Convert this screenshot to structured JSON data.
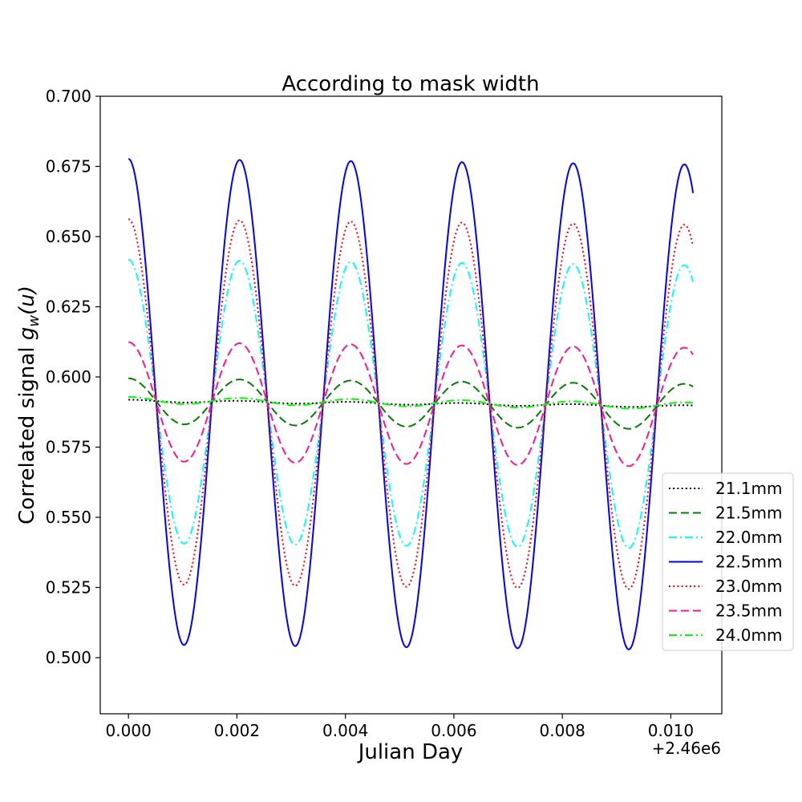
{
  "chart_data": {
    "type": "line",
    "title": "According to mask width",
    "xlabel": "Julian Day",
    "ylabel": "Correlated signal g_w(u)",
    "ylabel_parts": {
      "prefix": "Correlated signal ",
      "g": "g",
      "sub": "w",
      "arg": "(u)"
    },
    "x_offset_label": "+2.46e6",
    "xlim": [
      -0.00052,
      0.01094
    ],
    "ylim": [
      0.48,
      0.7
    ],
    "xticks": [
      0.0,
      0.002,
      0.004,
      0.006,
      0.008,
      0.01
    ],
    "xtick_labels": [
      "0.000",
      "0.002",
      "0.004",
      "0.006",
      "0.008",
      "0.010"
    ],
    "yticks": [
      0.5,
      0.525,
      0.55,
      0.575,
      0.6,
      0.625,
      0.65,
      0.675,
      0.7
    ],
    "ytick_labels": [
      "0.500",
      "0.525",
      "0.550",
      "0.575",
      "0.600",
      "0.625",
      "0.650",
      "0.675",
      "0.700"
    ],
    "grid": false,
    "legend_position": "center-right, outside",
    "x_range": [
      0.0,
      0.01041
    ],
    "period": 0.00205,
    "series": [
      {
        "name": "21.1mm",
        "color": "#000000",
        "dash": "dotted",
        "amplitude_start": 0.0004,
        "amplitude_end": 0.0004,
        "mean_start": 0.5915,
        "mean_end": 0.5895
      },
      {
        "name": "21.5mm",
        "color": "#007f00",
        "dash": "dashed",
        "amplitude_start": 0.0081,
        "amplitude_end": 0.0081,
        "mean_start": 0.5914,
        "mean_end": 0.5894
      },
      {
        "name": "22.0mm",
        "color": "#00ffff",
        "dash": "dashdot",
        "amplitude_start": 0.0505,
        "amplitude_end": 0.0505,
        "mean_start": 0.5913,
        "mean_end": 0.5893
      },
      {
        "name": "22.5mm",
        "color": "#0000ff",
        "dash": "solid",
        "amplitude_start": 0.0865,
        "amplitude_end": 0.0865,
        "mean_start": 0.5912,
        "mean_end": 0.5892
      },
      {
        "name": "23.0mm",
        "color": "#ff0000",
        "dash": "dotted",
        "amplitude_start": 0.065,
        "amplitude_end": 0.065,
        "mean_start": 0.5912,
        "mean_end": 0.5892
      },
      {
        "name": "23.5mm",
        "color": "#ff1493",
        "dash": "dashed",
        "amplitude_start": 0.0212,
        "amplitude_end": 0.0212,
        "mean_start": 0.5912,
        "mean_end": 0.5892
      },
      {
        "name": "24.0mm",
        "color": "#00ff00",
        "dash": "dashdot",
        "amplitude_start": 0.0012,
        "amplitude_end": 0.0012,
        "mean_start": 0.5917,
        "mean_end": 0.5897
      }
    ]
  }
}
